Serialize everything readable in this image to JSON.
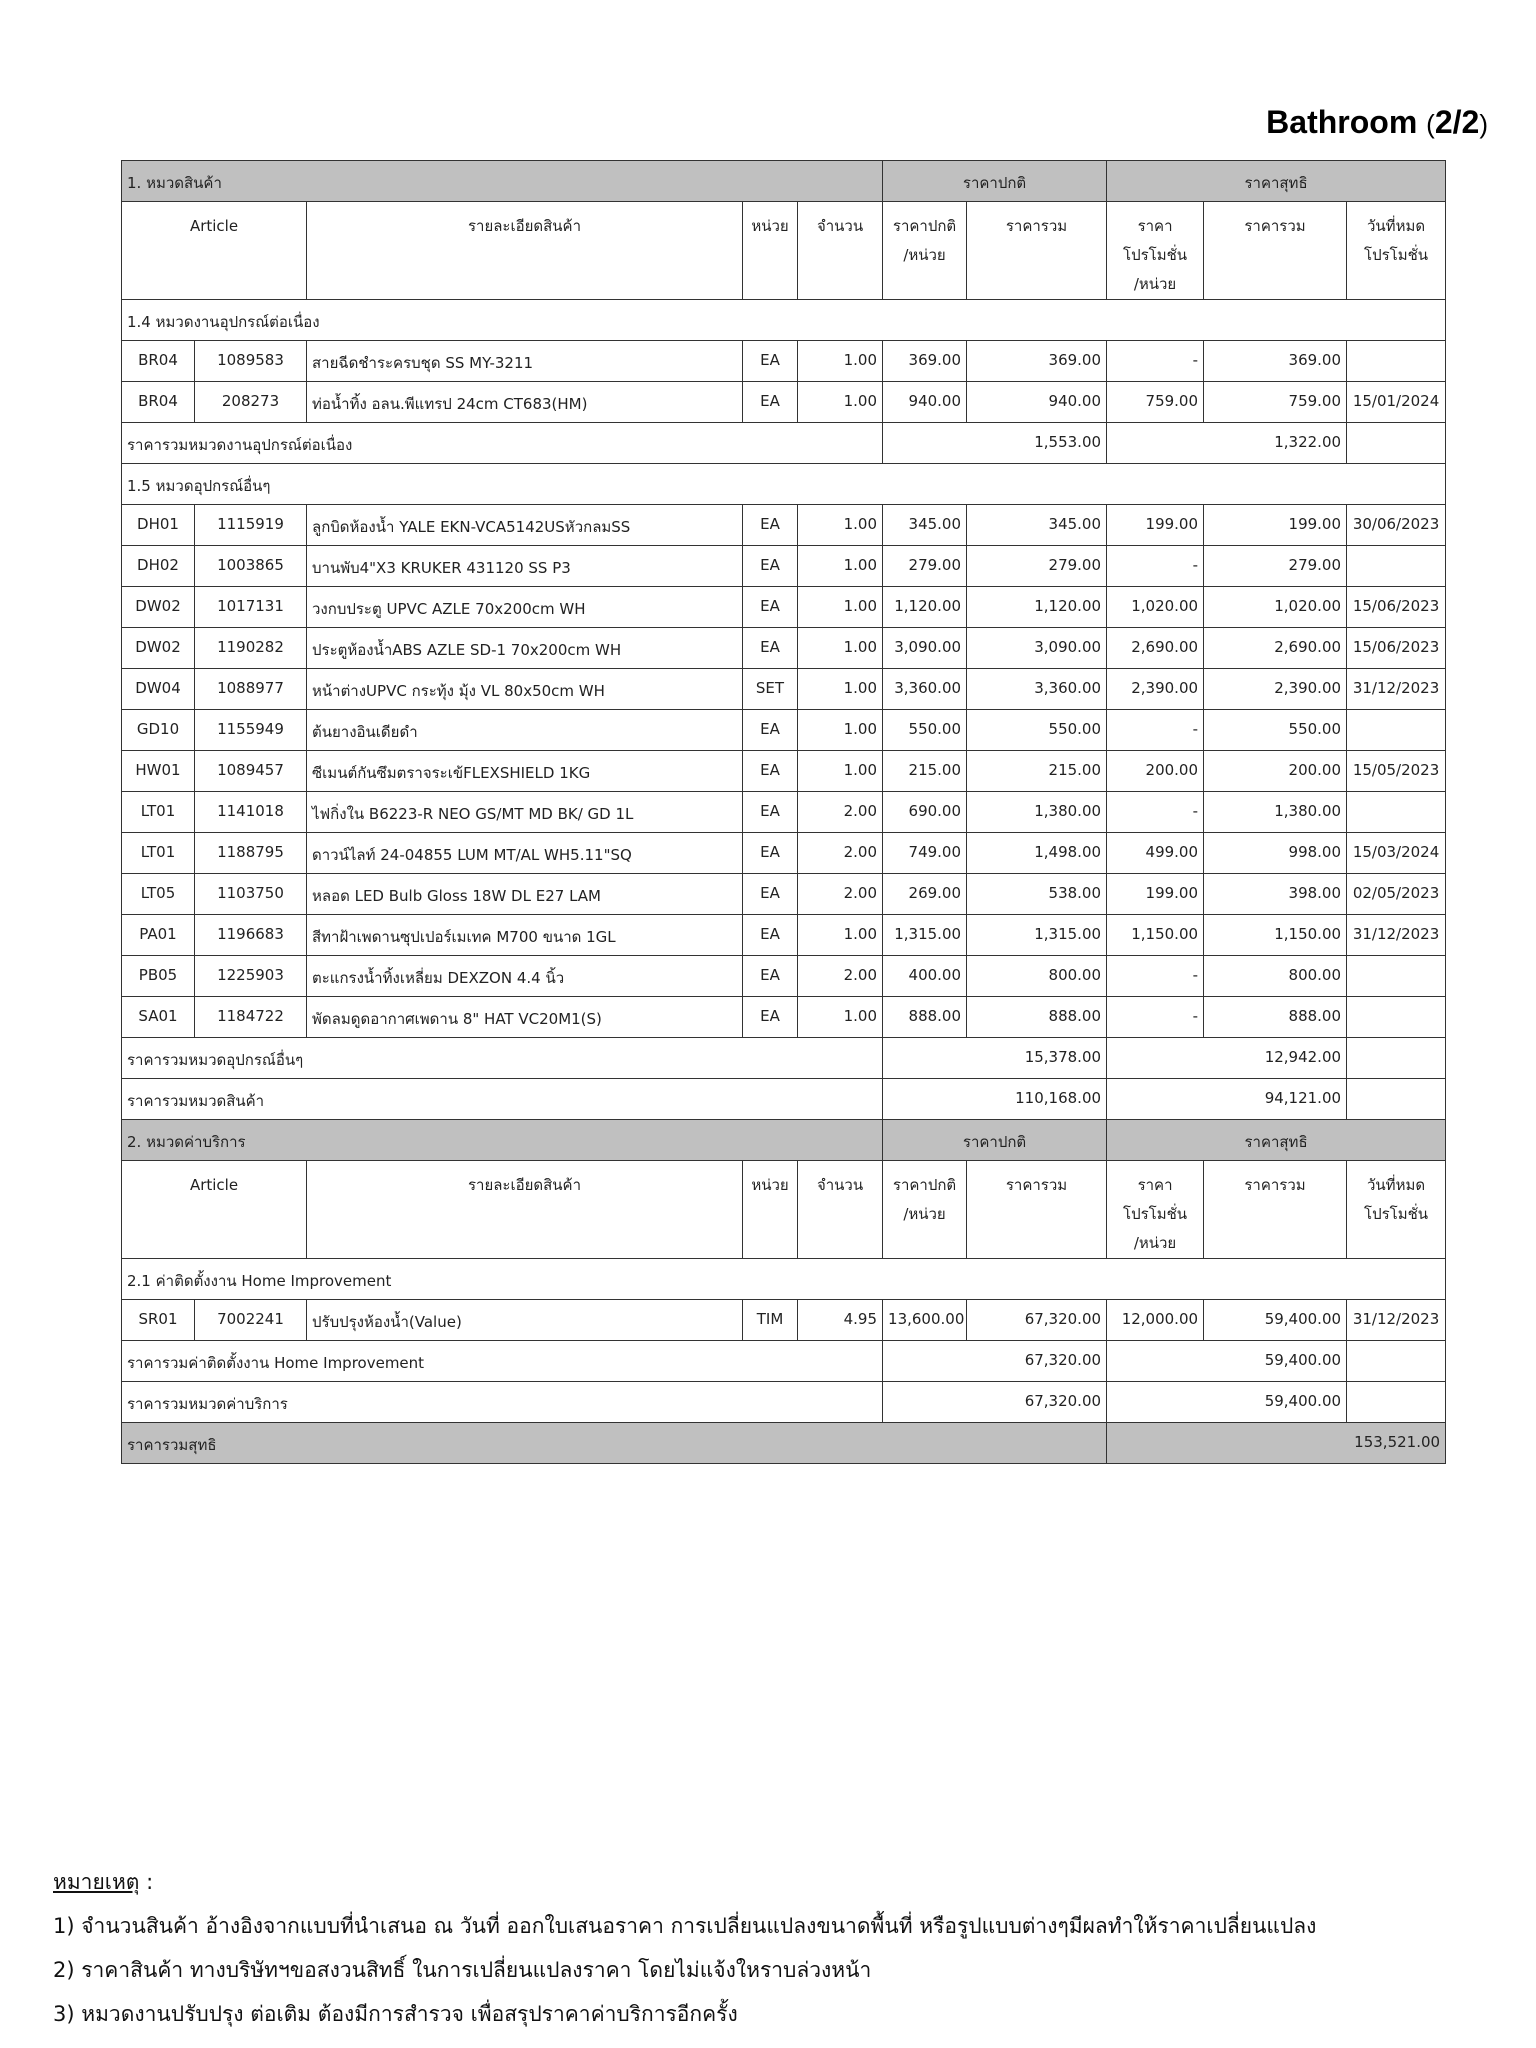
{
  "title": {
    "main": "Bathroom",
    "open": "(",
    "page": "2/2",
    "close": ")"
  },
  "headers": {
    "article": "Article",
    "description": "รายละเอียดสินค้า",
    "unit": "หน่วย",
    "qty": "จำนวน",
    "unit_price": [
      "ราคาปกติ",
      "/หน่วย"
    ],
    "total": "ราคารวม",
    "promo_price": [
      "ราคา",
      "โปรโมชั่น",
      "/หน่วย"
    ],
    "net_total": "ราคารวม",
    "promo_end": [
      "วันที่หมด",
      "โปรโมชั่น"
    ],
    "normal_group": "ราคาปกติ",
    "net_group": "ราคาสุทธิ"
  },
  "categories": [
    {
      "title": "1. หมวดสินค้า",
      "sections": [
        {
          "title": "1.4 หมวดงานอุปกรณ์ต่อเนื่อง",
          "items": [
            [
              "BR04",
              "1089583",
              "สายฉีดชำระครบชุด SS MY-3211",
              "EA",
              "1.00",
              "369.00",
              "369.00",
              "-",
              "369.00",
              ""
            ],
            [
              "BR04",
              "208273",
              "ท่อน้ำทิ้ง อลน.พีแทรป 24cm CT683(HM)",
              "EA",
              "1.00",
              "940.00",
              "940.00",
              "759.00",
              "759.00",
              "15/01/2024"
            ]
          ],
          "subtotal_label": "ราคารวมหมวดงานอุปกรณ์ต่อเนื่อง",
          "subtotal_normal": "1,553.00",
          "subtotal_net": "1,322.00"
        },
        {
          "title": "1.5 หมวดอุปกรณ์อื่นๆ",
          "items": [
            [
              "DH01",
              "1115919",
              "ลูกบิดห้องน้ำ YALE EKN-VCA5142USหัวกลมSS",
              "EA",
              "1.00",
              "345.00",
              "345.00",
              "199.00",
              "199.00",
              "30/06/2023"
            ],
            [
              "DH02",
              "1003865",
              "บานพับ4\"X3 KRUKER 431120 SS P3",
              "EA",
              "1.00",
              "279.00",
              "279.00",
              "-",
              "279.00",
              ""
            ],
            [
              "DW02",
              "1017131",
              "วงกบประตู UPVC AZLE 70x200cm WH",
              "EA",
              "1.00",
              "1,120.00",
              "1,120.00",
              "1,020.00",
              "1,020.00",
              "15/06/2023"
            ],
            [
              "DW02",
              "1190282",
              "ประตูห้องน้ำABS AZLE SD-1 70x200cm WH",
              "EA",
              "1.00",
              "3,090.00",
              "3,090.00",
              "2,690.00",
              "2,690.00",
              "15/06/2023"
            ],
            [
              "DW04",
              "1088977",
              "หน้าต่างUPVC กระทุ้ง มุ้ง VL 80x50cm WH",
              "SET",
              "1.00",
              "3,360.00",
              "3,360.00",
              "2,390.00",
              "2,390.00",
              "31/12/2023"
            ],
            [
              "GD10",
              "1155949",
              "ต้นยางอินเดียดำ",
              "EA",
              "1.00",
              "550.00",
              "550.00",
              "-",
              "550.00",
              ""
            ],
            [
              "HW01",
              "1089457",
              "ซีเมนต์กันซึมตราจระเข้FLEXSHIELD 1KG",
              "EA",
              "1.00",
              "215.00",
              "215.00",
              "200.00",
              "200.00",
              "15/05/2023"
            ],
            [
              "LT01",
              "1141018",
              "ไฟกิ่งใน B6223-R NEO GS/MT MD BK/ GD 1L",
              "EA",
              "2.00",
              "690.00",
              "1,380.00",
              "-",
              "1,380.00",
              ""
            ],
            [
              "LT01",
              "1188795",
              "ดาวน์ไลท์ 24-04855 LUM MT/AL WH5.11\"SQ",
              "EA",
              "2.00",
              "749.00",
              "1,498.00",
              "499.00",
              "998.00",
              "15/03/2024"
            ],
            [
              "LT05",
              "1103750",
              "หลอด LED Bulb Gloss 18W DL E27 LAM",
              "EA",
              "2.00",
              "269.00",
              "538.00",
              "199.00",
              "398.00",
              "02/05/2023"
            ],
            [
              "PA01",
              "1196683",
              "สีทาฝ้าเพดานซุปเปอร์เมเทค M700 ขนาด 1GL",
              "EA",
              "1.00",
              "1,315.00",
              "1,315.00",
              "1,150.00",
              "1,150.00",
              "31/12/2023"
            ],
            [
              "PB05",
              "1225903",
              "ตะแกรงน้ำทิ้งเหลี่ยม DEXZON  4.4 นิ้ว",
              "EA",
              "2.00",
              "400.00",
              "800.00",
              "-",
              "800.00",
              ""
            ],
            [
              "SA01",
              "1184722",
              "พัดลมดูดอากาศเพดาน 8\" HAT VC20M1(S)",
              "EA",
              "1.00",
              "888.00",
              "888.00",
              "-",
              "888.00",
              ""
            ]
          ],
          "subtotal_label": "ราคารวมหมวดอุปกรณ์อื่นๆ",
          "subtotal_normal": "15,378.00",
          "subtotal_net": "12,942.00"
        }
      ],
      "total_label": "ราคารวมหมวดสินค้า",
      "total_normal": "110,168.00",
      "total_net": "94,121.00"
    },
    {
      "title": "2. หมวดค่าบริการ",
      "sections": [
        {
          "title": "2.1 ค่าติดตั้งงาน Home Improvement",
          "items": [
            [
              "SR01",
              "7002241",
              "ปรับปรุงห้องน้ำ(Value)",
              "TIM",
              "4.95",
              "13,600.00",
              "67,320.00",
              "12,000.00",
              "59,400.00",
              "31/12/2023"
            ]
          ],
          "subtotal_label": "ราคารวมค่าติดตั้งงาน Home Improvement",
          "subtotal_normal": "67,320.00",
          "subtotal_net": "59,400.00"
        }
      ],
      "total_label": "ราคารวมหมวดค่าบริการ",
      "total_normal": "67,320.00",
      "total_net": "59,400.00"
    }
  ],
  "grand_total": {
    "label": "ราคารวมสุทธิ",
    "value": "153,521.00"
  },
  "notes": {
    "heading": "หมายเหตุ",
    "colon": " :",
    "lines": [
      "1) จำนวนสินค้า อ้างอิงจากแบบที่นำเสนอ ณ วันที่ ออกใบเสนอราคา การเปลี่ยนแปลงขนาดพื้นที่ หรือรูปแบบต่างๆมีผลทำให้ราคาเปลี่ยนแปลง",
      "2) ราคาสินค้า ทางบริษัทฯขอสงวนสิทธิ์ ในการเปลี่ยนแปลงราคา โดยไม่แจ้งใหราบล่วงหน้า",
      "3) หมวดงานปรับปรุง ต่อเติม ต้องมีการสำรวจ เพื่อสรุปราคาค่าบริการอีกครั้ง"
    ]
  },
  "colors": {
    "header_band": "#c0c0c0",
    "border": "#333333"
  }
}
